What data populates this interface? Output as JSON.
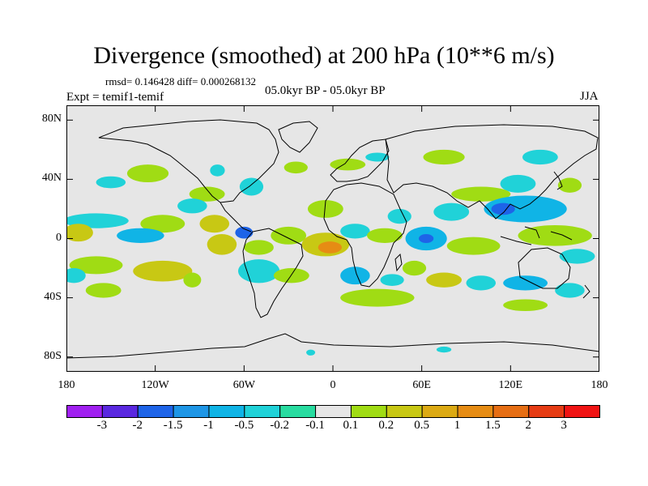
{
  "title": "Divergence (smoothed) at 200 hPa (10**6 m/s)",
  "stats_line": "rmsd= 0.146428 diff= 0.000268132",
  "experiment_label": "Expt = temif1-temif",
  "period_label": "05.0kyr BP - 05.0kyr BP",
  "season_label": "JJA",
  "map": {
    "projection": "cylindrical-equidistant",
    "lon_range": [
      -180,
      180
    ],
    "lat_range": [
      -90,
      90
    ],
    "background_color": "#e6e6e6",
    "y_ticks": [
      {
        "lat": 80,
        "label": "80N"
      },
      {
        "lat": 40,
        "label": "40N"
      },
      {
        "lat": 0,
        "label": "0"
      },
      {
        "lat": -40,
        "label": "40S"
      },
      {
        "lat": -80,
        "label": "80S"
      }
    ],
    "x_ticks": [
      {
        "lon": -180,
        "label": "180"
      },
      {
        "lon": -120,
        "label": "120W"
      },
      {
        "lon": -60,
        "label": "60W"
      },
      {
        "lon": 0,
        "label": "0"
      },
      {
        "lon": 60,
        "label": "60E"
      },
      {
        "lon": 120,
        "label": "120E"
      },
      {
        "lon": 180,
        "label": "180"
      }
    ],
    "anomalies": [
      {
        "lon": -125,
        "lat": 44,
        "rlon": 14,
        "rlat": 6,
        "level": "0.2"
      },
      {
        "lon": -150,
        "lat": 38,
        "rlon": 10,
        "rlat": 4,
        "level": "-0.2"
      },
      {
        "lon": -78,
        "lat": 46,
        "rlon": 5,
        "rlat": 4,
        "level": "-0.2"
      },
      {
        "lon": -55,
        "lat": 35,
        "rlon": 8,
        "rlat": 6,
        "level": "-0.2"
      },
      {
        "lon": -25,
        "lat": 48,
        "rlon": 8,
        "rlat": 4,
        "level": "0.2"
      },
      {
        "lon": 10,
        "lat": 50,
        "rlon": 12,
        "rlat": 4,
        "level": "0.2"
      },
      {
        "lon": 30,
        "lat": 55,
        "rlon": 8,
        "rlat": 3,
        "level": "-0.2"
      },
      {
        "lon": 75,
        "lat": 55,
        "rlon": 14,
        "rlat": 5,
        "level": "0.2"
      },
      {
        "lon": 140,
        "lat": 55,
        "rlon": 12,
        "rlat": 5,
        "level": "-0.2"
      },
      {
        "lon": 125,
        "lat": 37,
        "rlon": 12,
        "rlat": 6,
        "level": "-0.2"
      },
      {
        "lon": 160,
        "lat": 36,
        "rlon": 8,
        "rlat": 5,
        "level": "0.2"
      },
      {
        "lon": 100,
        "lat": 30,
        "rlon": 20,
        "rlat": 5,
        "level": "0.2"
      },
      {
        "lon": 130,
        "lat": 20,
        "rlon": 28,
        "rlat": 9,
        "level": "-0.5"
      },
      {
        "lon": 115,
        "lat": 20,
        "rlon": 8,
        "rlat": 4,
        "level": "-1.5"
      },
      {
        "lon": 80,
        "lat": 18,
        "rlon": 12,
        "rlat": 6,
        "level": "-0.2"
      },
      {
        "lon": -85,
        "lat": 30,
        "rlon": 12,
        "rlat": 5,
        "level": "0.2"
      },
      {
        "lon": -95,
        "lat": 22,
        "rlon": 10,
        "rlat": 5,
        "level": "-0.2"
      },
      {
        "lon": -160,
        "lat": 12,
        "rlon": 22,
        "rlat": 5,
        "level": "-0.2"
      },
      {
        "lon": -115,
        "lat": 10,
        "rlon": 15,
        "rlat": 6,
        "level": "0.2"
      },
      {
        "lon": -80,
        "lat": 10,
        "rlon": 10,
        "rlat": 6,
        "level": "0.5"
      },
      {
        "lon": -172,
        "lat": 4,
        "rlon": 10,
        "rlat": 6,
        "level": "0.5"
      },
      {
        "lon": -130,
        "lat": 2,
        "rlon": 16,
        "rlat": 5,
        "level": "-0.5"
      },
      {
        "lon": -75,
        "lat": -4,
        "rlon": 10,
        "rlat": 7,
        "level": "0.5"
      },
      {
        "lon": -60,
        "lat": 4,
        "rlon": 6,
        "rlat": 4,
        "level": "-1.5"
      },
      {
        "lon": -50,
        "lat": -6,
        "rlon": 10,
        "rlat": 5,
        "level": "0.2"
      },
      {
        "lon": -30,
        "lat": 2,
        "rlon": 12,
        "rlat": 6,
        "level": "0.2"
      },
      {
        "lon": -5,
        "lat": 20,
        "rlon": 12,
        "rlat": 6,
        "level": "0.2"
      },
      {
        "lon": -5,
        "lat": -4,
        "rlon": 16,
        "rlat": 8,
        "level": "0.5"
      },
      {
        "lon": -2,
        "lat": -6,
        "rlon": 8,
        "rlat": 4,
        "level": "1.5"
      },
      {
        "lon": 15,
        "lat": 5,
        "rlon": 10,
        "rlat": 5,
        "level": "-0.2"
      },
      {
        "lon": 35,
        "lat": 2,
        "rlon": 12,
        "rlat": 5,
        "level": "0.2"
      },
      {
        "lon": 45,
        "lat": 15,
        "rlon": 8,
        "rlat": 5,
        "level": "-0.2"
      },
      {
        "lon": 63,
        "lat": 0,
        "rlon": 14,
        "rlat": 8,
        "level": "-0.5"
      },
      {
        "lon": 63,
        "lat": 0,
        "rlon": 5,
        "rlat": 3,
        "level": "-1.5"
      },
      {
        "lon": 95,
        "lat": -5,
        "rlon": 18,
        "rlat": 6,
        "level": "0.2"
      },
      {
        "lon": 150,
        "lat": 2,
        "rlon": 25,
        "rlat": 7,
        "level": "0.2"
      },
      {
        "lon": 165,
        "lat": -12,
        "rlon": 12,
        "rlat": 5,
        "level": "-0.2"
      },
      {
        "lon": -160,
        "lat": -18,
        "rlon": 18,
        "rlat": 6,
        "level": "0.2"
      },
      {
        "lon": -115,
        "lat": -22,
        "rlon": 20,
        "rlat": 7,
        "level": "0.5"
      },
      {
        "lon": -175,
        "lat": -25,
        "rlon": 8,
        "rlat": 5,
        "level": "-0.2"
      },
      {
        "lon": -155,
        "lat": -35,
        "rlon": 12,
        "rlat": 5,
        "level": "0.2"
      },
      {
        "lon": -95,
        "lat": -28,
        "rlon": 6,
        "rlat": 5,
        "level": "0.2"
      },
      {
        "lon": -50,
        "lat": -22,
        "rlon": 14,
        "rlat": 8,
        "level": "-0.2"
      },
      {
        "lon": -28,
        "lat": -25,
        "rlon": 12,
        "rlat": 5,
        "level": "0.2"
      },
      {
        "lon": 15,
        "lat": -25,
        "rlon": 10,
        "rlat": 6,
        "level": "-0.5"
      },
      {
        "lon": 30,
        "lat": -40,
        "rlon": 25,
        "rlat": 6,
        "level": "0.2"
      },
      {
        "lon": 40,
        "lat": -28,
        "rlon": 8,
        "rlat": 4,
        "level": "-0.2"
      },
      {
        "lon": 55,
        "lat": -20,
        "rlon": 8,
        "rlat": 5,
        "level": "0.2"
      },
      {
        "lon": 75,
        "lat": -28,
        "rlon": 12,
        "rlat": 5,
        "level": "0.5"
      },
      {
        "lon": 100,
        "lat": -30,
        "rlon": 10,
        "rlat": 5,
        "level": "-0.2"
      },
      {
        "lon": 130,
        "lat": -30,
        "rlon": 15,
        "rlat": 5,
        "level": "-0.5"
      },
      {
        "lon": 160,
        "lat": -35,
        "rlon": 10,
        "rlat": 5,
        "level": "-0.2"
      },
      {
        "lon": 130,
        "lat": -45,
        "rlon": 15,
        "rlat": 4,
        "level": "0.2"
      },
      {
        "lon": -15,
        "lat": -77,
        "rlon": 3,
        "rlat": 2,
        "level": "-0.2"
      },
      {
        "lon": 75,
        "lat": -75,
        "rlon": 5,
        "rlat": 2,
        "level": "-0.2"
      }
    ]
  },
  "colorbar": {
    "levels": [
      {
        "label": "-3",
        "color": "#a020f0"
      },
      {
        "label": "-2",
        "color": "#5a28e0"
      },
      {
        "label": "-1.5",
        "color": "#1e64e8"
      },
      {
        "label": "-1",
        "color": "#1e96e6"
      },
      {
        "label": "-0.5",
        "color": "#10b4e6"
      },
      {
        "label": "-0.2",
        "color": "#20d2d8"
      },
      {
        "label": "-0.1",
        "color": "#28dca0"
      },
      {
        "label": "0.1",
        "color": "#e6e6e6"
      },
      {
        "label": "0.2",
        "color": "#a0dc14"
      },
      {
        "label": "0.5",
        "color": "#c8c814"
      },
      {
        "label": "1",
        "color": "#dcaa14"
      },
      {
        "label": "1.5",
        "color": "#e68c14"
      },
      {
        "label": "2",
        "color": "#e66e14"
      },
      {
        "label": "3",
        "color": "#e63c14"
      },
      {
        "label": "",
        "color": "#f01414"
      }
    ]
  }
}
